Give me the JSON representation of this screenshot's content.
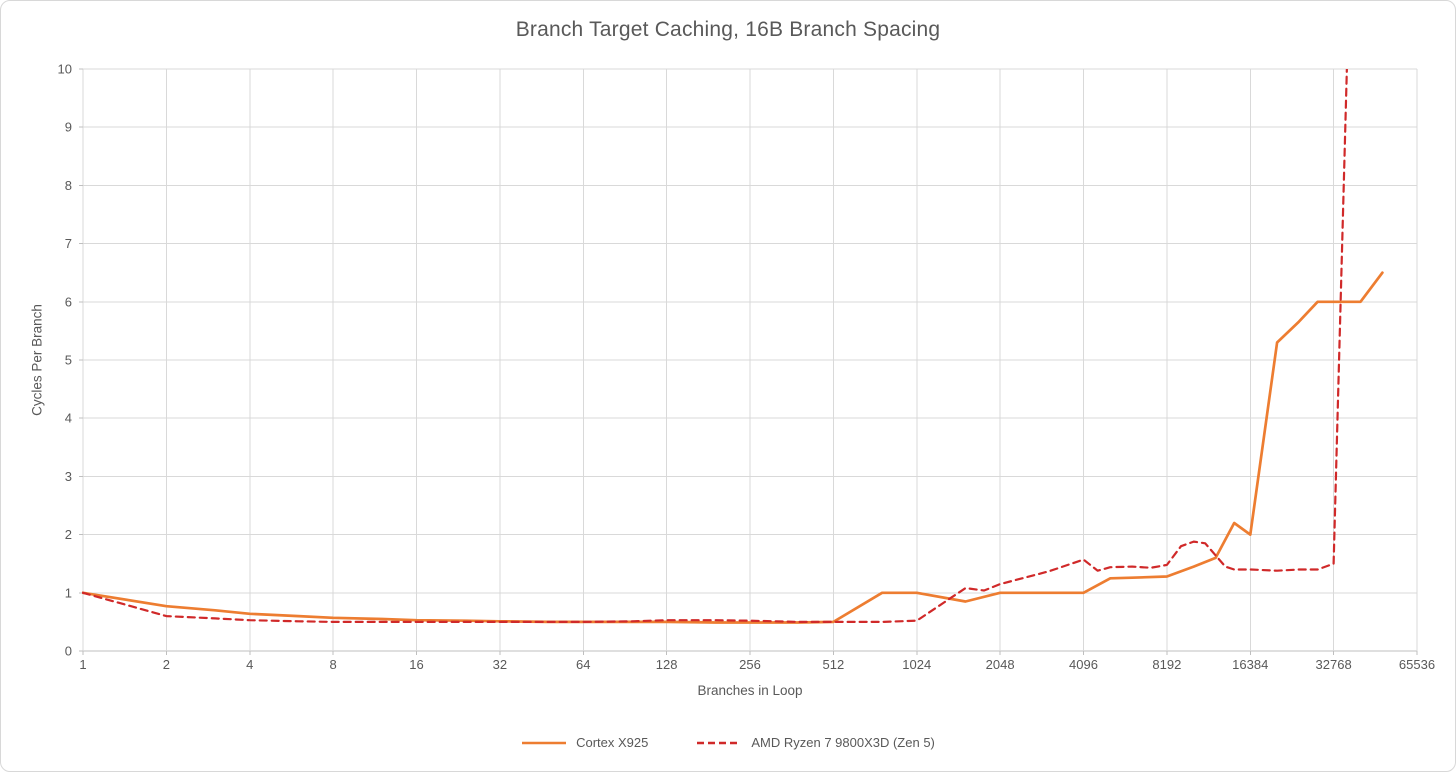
{
  "chart": {
    "title": "Branch Target Caching, 16B Branch Spacing",
    "x_axis_title": "Branches in Loop",
    "y_axis_title": "Cycles Per Branch"
  },
  "colors": {
    "gridline": "#D9D9D9",
    "axis_line": "#BFBFBF",
    "label_text": "#595959",
    "cortex_orange": "#ED7D31",
    "amd_red": "#D02929"
  },
  "chart_data": {
    "type": "line",
    "title": "Branch Target Caching, 16B Branch Spacing",
    "xlabel": "Branches in Loop",
    "ylabel": "Cycles Per Branch",
    "x_scale": "log2",
    "xlim": [
      1,
      65536
    ],
    "ylim": [
      0,
      10
    ],
    "x_ticks": [
      1,
      2,
      4,
      8,
      16,
      32,
      64,
      128,
      256,
      512,
      1024,
      2048,
      4096,
      8192,
      16384,
      32768,
      65536
    ],
    "y_ticks": [
      0,
      1,
      2,
      3,
      4,
      5,
      6,
      7,
      8,
      9,
      10
    ],
    "grid": true,
    "legend_position": "bottom-center",
    "note": "AMD series spikes past the y-axis maximum just after 32768 and is clipped at the top of the plot; Cortex series ends near 49152 at 6.5",
    "series": [
      {
        "name": "Cortex X925",
        "color": "#ED7D31",
        "style": "solid",
        "points": [
          [
            1,
            1.0
          ],
          [
            2,
            0.77
          ],
          [
            3,
            0.7
          ],
          [
            4,
            0.64
          ],
          [
            6,
            0.6
          ],
          [
            8,
            0.57
          ],
          [
            12,
            0.55
          ],
          [
            16,
            0.53
          ],
          [
            24,
            0.52
          ],
          [
            32,
            0.51
          ],
          [
            48,
            0.5
          ],
          [
            64,
            0.5
          ],
          [
            96,
            0.5
          ],
          [
            128,
            0.5
          ],
          [
            192,
            0.49
          ],
          [
            256,
            0.49
          ],
          [
            384,
            0.49
          ],
          [
            512,
            0.5
          ],
          [
            768,
            1.0
          ],
          [
            1024,
            1.0
          ],
          [
            1536,
            0.85
          ],
          [
            2048,
            1.0
          ],
          [
            3072,
            1.0
          ],
          [
            4096,
            1.0
          ],
          [
            5120,
            1.25
          ],
          [
            6144,
            1.26
          ],
          [
            8192,
            1.28
          ],
          [
            10240,
            1.45
          ],
          [
            12288,
            1.6
          ],
          [
            14336,
            2.2
          ],
          [
            16384,
            2.0
          ],
          [
            20480,
            5.3
          ],
          [
            24576,
            5.66
          ],
          [
            28672,
            6.0
          ],
          [
            32768,
            6.0
          ],
          [
            40960,
            6.0
          ],
          [
            49152,
            6.5
          ]
        ]
      },
      {
        "name": "AMD Ryzen 7 9800X3D (Zen 5)",
        "color": "#D02929",
        "style": "dashed",
        "points": [
          [
            1,
            1.0
          ],
          [
            2,
            0.6
          ],
          [
            3,
            0.56
          ],
          [
            4,
            0.53
          ],
          [
            6,
            0.51
          ],
          [
            8,
            0.5
          ],
          [
            12,
            0.5
          ],
          [
            16,
            0.5
          ],
          [
            24,
            0.5
          ],
          [
            32,
            0.5
          ],
          [
            48,
            0.5
          ],
          [
            64,
            0.5
          ],
          [
            96,
            0.51
          ],
          [
            128,
            0.53
          ],
          [
            192,
            0.53
          ],
          [
            256,
            0.52
          ],
          [
            384,
            0.5
          ],
          [
            512,
            0.5
          ],
          [
            768,
            0.5
          ],
          [
            1024,
            0.52
          ],
          [
            1536,
            1.08
          ],
          [
            1792,
            1.04
          ],
          [
            2048,
            1.15
          ],
          [
            3072,
            1.37
          ],
          [
            4096,
            1.57
          ],
          [
            4608,
            1.38
          ],
          [
            5120,
            1.44
          ],
          [
            6144,
            1.45
          ],
          [
            7168,
            1.43
          ],
          [
            8192,
            1.48
          ],
          [
            9216,
            1.8
          ],
          [
            10240,
            1.88
          ],
          [
            11264,
            1.85
          ],
          [
            13312,
            1.45
          ],
          [
            14336,
            1.4
          ],
          [
            16384,
            1.4
          ],
          [
            20480,
            1.38
          ],
          [
            24576,
            1.4
          ],
          [
            28672,
            1.4
          ],
          [
            32768,
            1.5
          ],
          [
            36864,
            10.6
          ]
        ]
      }
    ]
  }
}
